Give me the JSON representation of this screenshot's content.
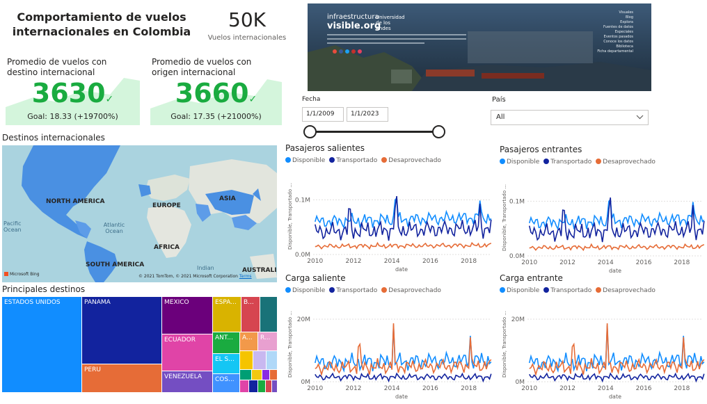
{
  "header": {
    "title": "Comportamiento de vuelos internacionales en Colombia",
    "total_value": "50K",
    "total_label": "Vuelos internacionales"
  },
  "kpis": [
    {
      "label": "Promedio de vuelos con destino internacional",
      "value": "3630",
      "goal": "Goal: 18.33 (+19700%)"
    },
    {
      "label": "Promedio de vuelos con origen internacional",
      "value": "3660",
      "goal": "Goal: 17.35 (+21000%)"
    }
  ],
  "banner": {
    "brand_line1": "infraestructura",
    "brand_line2": "visible.org",
    "university": "Universidad de los Andes",
    "menu": [
      "Visuales",
      "Blog",
      "Explora",
      "Fuentes de datos",
      "Especiales",
      "Eventos pasados",
      "Conoce los datos",
      "Biblioteca",
      "Ficha departamental"
    ]
  },
  "filters": {
    "date_label": "Fecha",
    "date_start": "1/1/2009",
    "date_end": "1/1/2023",
    "country_label": "País",
    "country_value": "All"
  },
  "map": {
    "title": "Destinos internacionales",
    "labels": {
      "north_america": "NORTH AMERICA",
      "europe": "EUROPE",
      "asia": "ASIA",
      "africa": "AFRICA",
      "south_america": "SOUTH AMERICA",
      "australia": "AUSTRALIA",
      "pacific": "Pacific Ocean",
      "atlantic": "Atlantic Ocean",
      "indian": "Indian"
    },
    "bing": "Microsoft Bing",
    "copyright": "© 2021 TomTom, © 2021 Microsoft Corporation",
    "terms": "Terms"
  },
  "treemap": {
    "title": "Principales destinos",
    "cells": [
      "ESTADOS UNIDOS",
      "PANAMA",
      "PERU",
      "MEXICO",
      "ECUADOR",
      "VENEZUELA",
      "ESPA...",
      "B...",
      "ANT...",
      "A...",
      "R...",
      "EL S...",
      "COS..."
    ]
  },
  "colors": {
    "disponible": "#118dff",
    "transportado": "#12239e",
    "desaprovechado": "#e66c37",
    "kpi_green": "#1aab40"
  },
  "chart_data": [
    {
      "type": "line",
      "title": "Pasajeros salientes",
      "xlabel": "date",
      "ylabel": "Disponible, Transportado ...",
      "x_ticks": [
        "2010",
        "2012",
        "2014",
        "2016",
        "2018"
      ],
      "y_ticks": [
        "0.0M",
        "0.1M"
      ],
      "ylim": [
        0,
        140000
      ],
      "xlim": [
        2009.9,
        2019.1
      ],
      "legend": [
        "Disponible",
        "Transportado",
        "Desaprovechado"
      ],
      "series": [
        {
          "name": "Disponible",
          "base": 60000,
          "amp": 14000,
          "trend": 900,
          "spikes": [
            [
              2014.2,
              40000
            ],
            [
              2018.6,
              35000
            ]
          ]
        },
        {
          "name": "Transportado",
          "base": 42000,
          "amp": 18000,
          "trend": 700,
          "spikes": [
            [
              2011.8,
              30000
            ],
            [
              2014.2,
              45000
            ],
            [
              2018.6,
              40000
            ]
          ]
        },
        {
          "name": "Desaprovechado",
          "base": 15000,
          "amp": 5000,
          "trend": 200,
          "spikes": []
        }
      ]
    },
    {
      "type": "line",
      "title": "Pasajeros entrantes",
      "xlabel": "date",
      "ylabel": "Disponible, Transportado ...",
      "x_ticks": [
        "2010",
        "2012",
        "2014",
        "2016",
        "2018"
      ],
      "y_ticks": [
        "0.0M",
        "0.1M"
      ],
      "ylim": [
        0,
        140000
      ],
      "xlim": [
        2009.9,
        2019.1
      ],
      "legend": [
        "Disponible",
        "Transportado",
        "Desaprovechado"
      ],
      "series": [
        {
          "name": "Disponible",
          "base": 60000,
          "amp": 14000,
          "trend": 900,
          "spikes": [
            [
              2014.2,
              40000
            ],
            [
              2018.6,
              35000
            ]
          ]
        },
        {
          "name": "Transportado",
          "base": 42000,
          "amp": 18000,
          "trend": 700,
          "spikes": [
            [
              2011.8,
              30000
            ],
            [
              2014.2,
              45000
            ],
            [
              2018.6,
              40000
            ]
          ]
        },
        {
          "name": "Desaprovechado",
          "base": 15000,
          "amp": 5000,
          "trend": 200,
          "spikes": []
        }
      ]
    },
    {
      "type": "line",
      "title": "Carga saliente",
      "xlabel": "date",
      "ylabel": "Disponible, Transportado ...",
      "x_ticks": [
        "2010",
        "2012",
        "2014",
        "2016",
        "2018"
      ],
      "y_ticks": [
        "0M",
        "20M"
      ],
      "ylim": [
        0,
        24000000
      ],
      "xlim": [
        2009.9,
        2019.1
      ],
      "legend": [
        "Disponible",
        "Transportado",
        "Desaprovechado"
      ],
      "series": [
        {
          "name": "Disponible",
          "base": 6000000,
          "amp": 3000000,
          "trend": 100000,
          "spikes": [
            [
              2014.1,
              10000000
            ],
            [
              2018.1,
              8000000
            ]
          ]
        },
        {
          "name": "Transportado",
          "base": 1500000,
          "amp": 1200000,
          "trend": 0,
          "spikes": []
        },
        {
          "name": "Desaprovechado",
          "base": 4500000,
          "amp": 2500000,
          "trend": 80000,
          "spikes": [
            [
              2014.1,
              13000000
            ],
            [
              2018.1,
              10000000
            ],
            [
              2012.3,
              6000000
            ]
          ]
        }
      ]
    },
    {
      "type": "line",
      "title": "Carga entrante",
      "xlabel": "date",
      "ylabel": "Disponible, Transportado ...",
      "x_ticks": [
        "2010",
        "2012",
        "2014",
        "2016",
        "2018"
      ],
      "y_ticks": [
        "0M",
        "20M"
      ],
      "ylim": [
        0,
        24000000
      ],
      "xlim": [
        2009.9,
        2019.1
      ],
      "legend": [
        "Disponible",
        "Transportado",
        "Desaprovechado"
      ],
      "series": [
        {
          "name": "Disponible",
          "base": 6000000,
          "amp": 3000000,
          "trend": 100000,
          "spikes": [
            [
              2014.1,
              10000000
            ],
            [
              2018.1,
              8000000
            ]
          ]
        },
        {
          "name": "Transportado",
          "base": 1500000,
          "amp": 1200000,
          "trend": 0,
          "spikes": []
        },
        {
          "name": "Desaprovechado",
          "base": 4500000,
          "amp": 2500000,
          "trend": 80000,
          "spikes": [
            [
              2014.1,
              13000000
            ],
            [
              2018.1,
              10000000
            ],
            [
              2012.3,
              6000000
            ]
          ]
        }
      ]
    }
  ]
}
